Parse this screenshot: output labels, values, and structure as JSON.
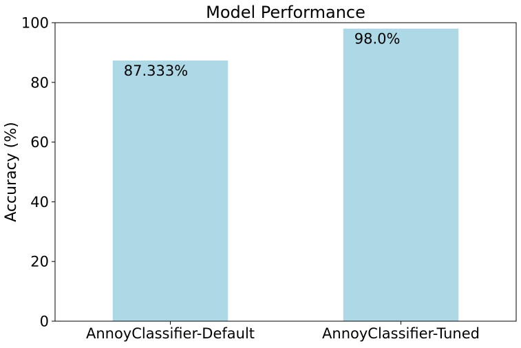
{
  "chart_data": {
    "type": "bar",
    "title": "Model Performance",
    "xlabel": "",
    "ylabel": "Accuracy (%)",
    "categories": [
      "AnnoyClassifier-Default",
      "AnnoyClassifier-Tuned"
    ],
    "values": [
      87.333,
      98.0
    ],
    "data_labels": [
      "87.333%",
      "98.0%"
    ],
    "ylim": [
      0,
      100
    ],
    "yticks": [
      0,
      20,
      40,
      60,
      80,
      100
    ],
    "ytick_labels": [
      "0",
      "20",
      "40",
      "60",
      "80",
      "100"
    ],
    "grid": false,
    "legend": "none",
    "bar_color": "#add8e6"
  }
}
